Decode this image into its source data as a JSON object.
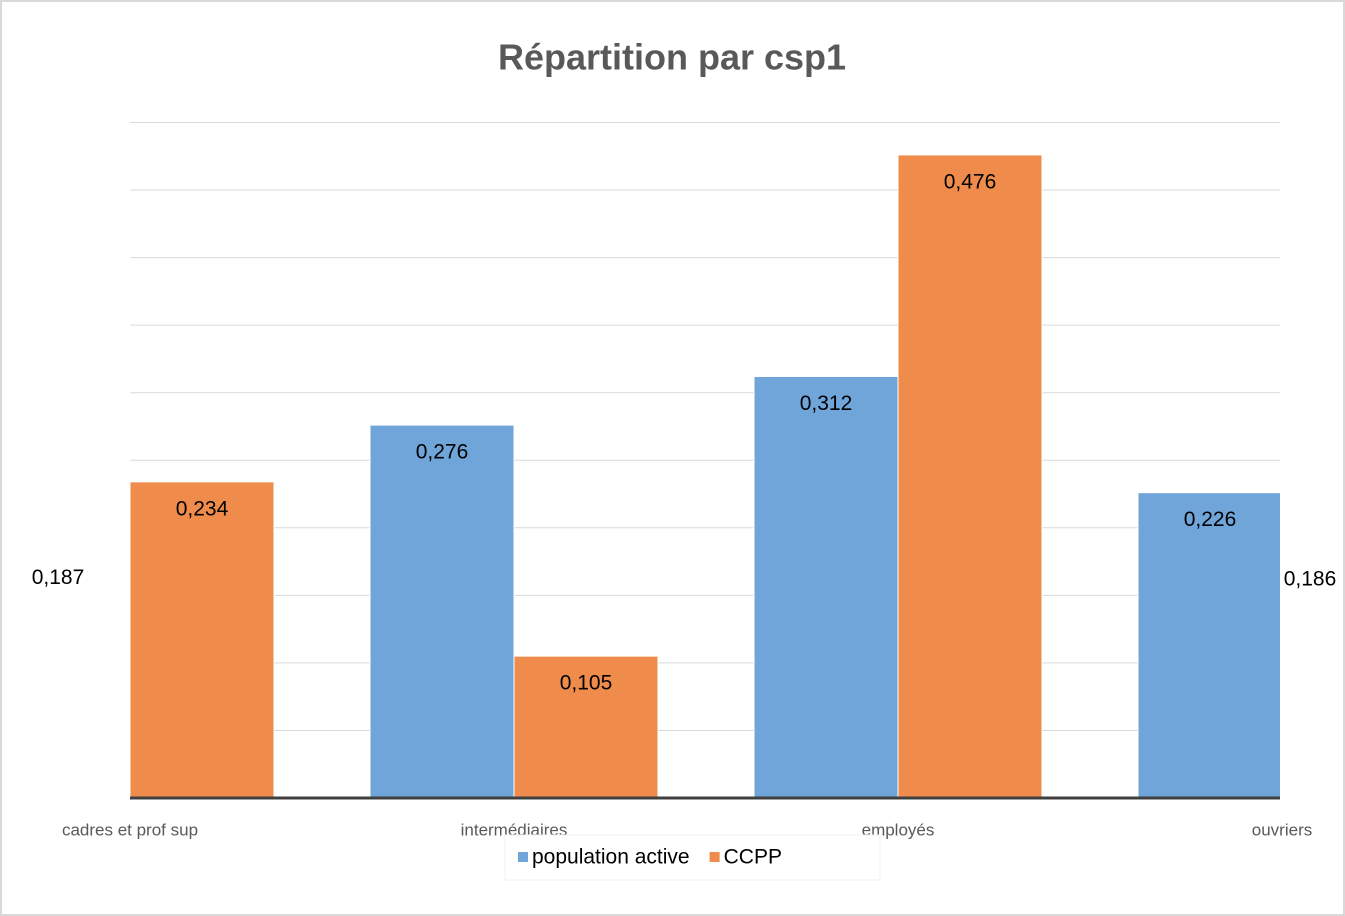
{
  "chart_data": {
    "type": "bar",
    "title": "Répartition par csp1",
    "categories": [
      "cadres et prof sup",
      "intermédiaires",
      "employés",
      "ouvriers"
    ],
    "series": [
      {
        "name": "population active",
        "color": "#70a5da",
        "values": [
          0.187,
          0.276,
          0.312,
          0.226
        ],
        "value_labels": [
          "0,187",
          "0,276",
          "0,312",
          "0,226"
        ]
      },
      {
        "name": "CCPP",
        "color": "#ef8c4b",
        "values": [
          0.234,
          0.105,
          0.476,
          0.186
        ],
        "value_labels": [
          "0,234",
          "0,105",
          "0,476",
          "0,186"
        ]
      }
    ],
    "ylim": [
      0,
      0.5
    ],
    "yticks": [
      0,
      0.05,
      0.1,
      0.15,
      0.2,
      0.25,
      0.3,
      0.35,
      0.4,
      0.45,
      0.5
    ],
    "grid": true,
    "legend": "bottom"
  }
}
